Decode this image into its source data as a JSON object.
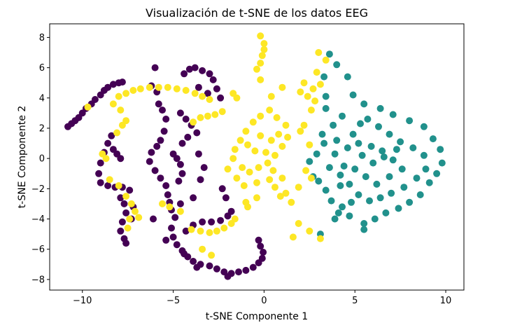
{
  "chart_data": {
    "type": "scatter",
    "title": "Visualización de t-SNE de los datos EEG",
    "xlabel": "t-SNE Componente 1",
    "ylabel": "t-SNE Componente 2",
    "xlim": [
      -11.8,
      11.0
    ],
    "ylim": [
      -8.7,
      8.9
    ],
    "xticks": [
      -10,
      -5,
      0,
      5,
      10
    ],
    "yticks": [
      -8,
      -6,
      -4,
      -2,
      0,
      2,
      4,
      6,
      8
    ],
    "xtick_labels": [
      "−10",
      "−5",
      "0",
      "5",
      "10"
    ],
    "ytick_labels": [
      "−8",
      "−6",
      "−4",
      "−2",
      "0",
      "2",
      "4",
      "6",
      "8"
    ],
    "grid": false,
    "legend": "none",
    "series": [
      {
        "color": "#440154",
        "points": [
          [
            -10.8,
            2.1
          ],
          [
            -10.6,
            2.3
          ],
          [
            -10.4,
            2.5
          ],
          [
            -10.2,
            2.7
          ],
          [
            -10.0,
            3.0
          ],
          [
            -9.8,
            3.3
          ],
          [
            -9.5,
            3.6
          ],
          [
            -9.3,
            3.9
          ],
          [
            -9.0,
            4.2
          ],
          [
            -8.8,
            4.5
          ],
          [
            -8.6,
            4.7
          ],
          [
            -8.3,
            4.9
          ],
          [
            -8.0,
            5.0
          ],
          [
            -7.8,
            5.05
          ],
          [
            -8.4,
            1.5
          ],
          [
            -8.6,
            1.0
          ],
          [
            -8.8,
            0.4
          ],
          [
            -9.0,
            -0.3
          ],
          [
            -9.1,
            -1.0
          ],
          [
            -9.0,
            -1.6
          ],
          [
            -8.6,
            -1.8
          ],
          [
            -8.2,
            -1.9
          ],
          [
            -7.8,
            -1.9
          ],
          [
            -7.4,
            -2.1
          ],
          [
            -8.3,
            0.6
          ],
          [
            -8.1,
            0.3
          ],
          [
            -7.9,
            0.0
          ],
          [
            -7.9,
            -2.6
          ],
          [
            -7.7,
            -3.0
          ],
          [
            -7.6,
            -3.6
          ],
          [
            -7.8,
            -4.2
          ],
          [
            -7.9,
            -4.8
          ],
          [
            -7.7,
            -5.3
          ],
          [
            -7.6,
            -5.6
          ],
          [
            -7.2,
            -3.2
          ],
          [
            -7.3,
            -4.0
          ],
          [
            -6.2,
            4.8
          ],
          [
            -5.9,
            4.4
          ],
          [
            -5.8,
            3.6
          ],
          [
            -5.6,
            3.2
          ],
          [
            -5.4,
            2.6
          ],
          [
            -5.5,
            1.8
          ],
          [
            -5.7,
            1.2
          ],
          [
            -5.9,
            0.8
          ],
          [
            -6.2,
            0.4
          ],
          [
            -6.3,
            -0.2
          ],
          [
            -6.0,
            -0.8
          ],
          [
            -5.7,
            -1.3
          ],
          [
            -5.4,
            -1.8
          ],
          [
            -5.3,
            -2.4
          ],
          [
            -5.2,
            -2.9
          ],
          [
            -5.1,
            -3.4
          ],
          [
            -5.0,
            0.3
          ],
          [
            -4.8,
            0.0
          ],
          [
            -4.6,
            -0.4
          ],
          [
            -4.5,
            -1.0
          ],
          [
            -4.7,
            -1.5
          ],
          [
            -4.6,
            -3.0
          ],
          [
            -4.9,
            -3.9
          ],
          [
            -5.1,
            -4.6
          ],
          [
            -5.0,
            -5.2
          ],
          [
            -4.8,
            -5.7
          ],
          [
            -4.5,
            -6.1
          ],
          [
            -4.2,
            -6.5
          ],
          [
            -3.9,
            -6.8
          ],
          [
            -3.5,
            -7.0
          ],
          [
            -3.0,
            -7.1
          ],
          [
            -2.6,
            -7.3
          ],
          [
            -2.2,
            -7.5
          ],
          [
            -1.8,
            -7.6
          ],
          [
            -1.4,
            -7.5
          ],
          [
            -1.0,
            -7.4
          ],
          [
            -0.6,
            -7.2
          ],
          [
            -0.3,
            -6.9
          ],
          [
            -0.1,
            -6.6
          ],
          [
            -0.05,
            -6.2
          ],
          [
            -0.2,
            -5.8
          ],
          [
            -0.3,
            -5.4
          ],
          [
            -4.4,
            -6.3
          ],
          [
            -3.7,
            -7.2
          ],
          [
            -2.0,
            -7.8
          ],
          [
            -4.3,
            -4.8
          ],
          [
            -3.9,
            -4.4
          ],
          [
            -3.4,
            -4.2
          ],
          [
            -2.9,
            -4.2
          ],
          [
            -2.4,
            -4.1
          ],
          [
            -2.0,
            -3.8
          ],
          [
            -1.8,
            -3.5
          ],
          [
            -2.1,
            -2.6
          ],
          [
            -2.3,
            -2.0
          ],
          [
            -4.6,
            3.0
          ],
          [
            -4.3,
            2.6
          ],
          [
            -4.0,
            2.2
          ],
          [
            -4.2,
            1.4
          ],
          [
            -4.5,
            1.0
          ],
          [
            -3.7,
            1.7
          ],
          [
            -4.4,
            5.6
          ],
          [
            -4.1,
            5.9
          ],
          [
            -3.8,
            6.0
          ],
          [
            -3.4,
            5.8
          ],
          [
            -3.0,
            5.6
          ],
          [
            -2.8,
            5.2
          ],
          [
            -2.6,
            4.6
          ],
          [
            -2.4,
            4.0
          ],
          [
            -3.1,
            4.3
          ],
          [
            -3.6,
            4.7
          ],
          [
            -6.0,
            6.0
          ],
          [
            -3.6,
            0.3
          ],
          [
            -3.3,
            -0.6
          ],
          [
            -3.5,
            -1.4
          ],
          [
            -3.9,
            -2.6
          ],
          [
            -5.4,
            -5.4
          ],
          [
            -6.1,
            -4.0
          ]
        ]
      },
      {
        "color": "#21918c",
        "points": [
          [
            2.5,
            -0.2
          ],
          [
            2.9,
            0.3
          ],
          [
            3.2,
            1.6
          ],
          [
            3.4,
            3.3
          ],
          [
            3.4,
            4.1
          ],
          [
            3.3,
            5.4
          ],
          [
            3.6,
            6.9
          ],
          [
            4.0,
            6.2
          ],
          [
            4.6,
            5.4
          ],
          [
            4.9,
            4.2
          ],
          [
            5.5,
            3.6
          ],
          [
            6.4,
            3.3
          ],
          [
            7.1,
            2.9
          ],
          [
            8.0,
            2.5
          ],
          [
            8.8,
            2.1
          ],
          [
            9.3,
            1.3
          ],
          [
            9.7,
            0.6
          ],
          [
            9.8,
            -0.3
          ],
          [
            9.5,
            -1.0
          ],
          [
            9.1,
            -1.6
          ],
          [
            8.6,
            -2.4
          ],
          [
            8.0,
            -2.9
          ],
          [
            7.4,
            -3.3
          ],
          [
            6.7,
            -3.6
          ],
          [
            6.1,
            -4.0
          ],
          [
            5.5,
            -4.3
          ],
          [
            5.5,
            -4.7
          ],
          [
            4.7,
            -3.8
          ],
          [
            4.1,
            -3.6
          ],
          [
            3.7,
            -2.8
          ],
          [
            3.4,
            -2.1
          ],
          [
            3.0,
            -1.5
          ],
          [
            2.7,
            -1.2
          ],
          [
            3.1,
            -5.0
          ],
          [
            3.9,
            -4.0
          ],
          [
            4.3,
            -3.2
          ],
          [
            4.2,
            -1.8
          ],
          [
            4.4,
            -0.5
          ],
          [
            4.6,
            0.7
          ],
          [
            4.9,
            1.6
          ],
          [
            5.3,
            2.3
          ],
          [
            5.7,
            2.6
          ],
          [
            6.3,
            2.1
          ],
          [
            6.9,
            1.6
          ],
          [
            7.5,
            1.1
          ],
          [
            8.2,
            0.7
          ],
          [
            8.8,
            0.2
          ],
          [
            8.9,
            -0.7
          ],
          [
            8.4,
            -1.3
          ],
          [
            7.7,
            -1.9
          ],
          [
            7.0,
            -2.3
          ],
          [
            6.4,
            -2.6
          ],
          [
            5.8,
            -2.8
          ],
          [
            5.2,
            -2.4
          ],
          [
            4.7,
            -1.7
          ],
          [
            5.0,
            -0.7
          ],
          [
            5.4,
            0.2
          ],
          [
            5.9,
            0.8
          ],
          [
            6.5,
            0.5
          ],
          [
            7.1,
            -0.1
          ],
          [
            7.6,
            -0.7
          ],
          [
            6.9,
            -1.2
          ],
          [
            6.2,
            -1.7
          ],
          [
            5.6,
            -1.2
          ],
          [
            6.0,
            -0.3
          ],
          [
            6.6,
            0.1
          ],
          [
            5.2,
            1.0
          ],
          [
            7.3,
            0.6
          ],
          [
            4.8,
            -2.9
          ],
          [
            3.6,
            -0.6
          ],
          [
            3.3,
            1.0
          ],
          [
            3.8,
            2.2
          ],
          [
            4.3,
            2.8
          ],
          [
            4.0,
            1.2
          ],
          [
            4.2,
            -1.1
          ],
          [
            3.9,
            0.3
          ]
        ]
      },
      {
        "color": "#fde725",
        "points": [
          [
            -0.2,
            8.1
          ],
          [
            0.0,
            7.6
          ],
          [
            0.0,
            7.2
          ],
          [
            -0.1,
            6.8
          ],
          [
            -0.2,
            6.3
          ],
          [
            -0.4,
            5.9
          ],
          [
            -0.2,
            5.2
          ],
          [
            -8.0,
            4.1
          ],
          [
            -7.6,
            4.3
          ],
          [
            -7.2,
            4.5
          ],
          [
            -6.8,
            4.6
          ],
          [
            -6.3,
            4.7
          ],
          [
            -5.8,
            4.7
          ],
          [
            -5.3,
            4.7
          ],
          [
            -4.8,
            4.6
          ],
          [
            -4.3,
            4.5
          ],
          [
            -3.8,
            4.3
          ],
          [
            -3.4,
            4.1
          ],
          [
            -3.0,
            3.9
          ],
          [
            -9.7,
            3.4
          ],
          [
            -8.3,
            3.6
          ],
          [
            -7.9,
            3.2
          ],
          [
            -8.1,
            1.7
          ],
          [
            -7.8,
            2.2
          ],
          [
            -7.6,
            2.5
          ],
          [
            -3.9,
            2.4
          ],
          [
            -3.5,
            2.7
          ],
          [
            -3.1,
            2.8
          ],
          [
            -2.7,
            2.9
          ],
          [
            -2.3,
            3.1
          ],
          [
            -8.9,
            0.3
          ],
          [
            -8.7,
            0.0
          ],
          [
            -8.5,
            -1.4
          ],
          [
            -8.0,
            -1.8
          ],
          [
            -7.6,
            -2.5
          ],
          [
            -7.3,
            -3.0
          ],
          [
            -7.1,
            -3.5
          ],
          [
            -7.4,
            -4.0
          ],
          [
            -7.5,
            -4.6
          ],
          [
            -6.9,
            -3.9
          ],
          [
            -5.6,
            -3.0
          ],
          [
            -5.2,
            -3.2
          ],
          [
            -4.6,
            -3.5
          ],
          [
            -4.0,
            -4.7
          ],
          [
            -3.5,
            -4.8
          ],
          [
            -3.0,
            -4.9
          ],
          [
            -2.6,
            -4.8
          ],
          [
            -2.2,
            -4.6
          ],
          [
            -1.8,
            -4.3
          ],
          [
            -1.6,
            -4.0
          ],
          [
            -2.0,
            -0.7
          ],
          [
            -1.7,
            0.0
          ],
          [
            -1.6,
            0.6
          ],
          [
            -1.3,
            1.2
          ],
          [
            -1.0,
            1.8
          ],
          [
            -0.6,
            2.4
          ],
          [
            -0.2,
            2.8
          ],
          [
            0.3,
            3.2
          ],
          [
            0.7,
            2.7
          ],
          [
            1.2,
            2.2
          ],
          [
            1.3,
            1.4
          ],
          [
            1.0,
            0.8
          ],
          [
            0.6,
            0.2
          ],
          [
            0.2,
            -0.3
          ],
          [
            -0.3,
            -0.6
          ],
          [
            -0.8,
            -0.9
          ],
          [
            -1.2,
            -0.6
          ],
          [
            -0.5,
            0.5
          ],
          [
            -0.9,
            0.9
          ],
          [
            0.4,
            1.2
          ],
          [
            0.8,
            1.6
          ],
          [
            -0.2,
            1.5
          ],
          [
            0.1,
            0.4
          ],
          [
            0.5,
            -0.8
          ],
          [
            1.0,
            -1.3
          ],
          [
            0.6,
            -1.9
          ],
          [
            1.2,
            -2.3
          ],
          [
            1.5,
            -2.9
          ],
          [
            0.9,
            -2.5
          ],
          [
            0.3,
            -1.4
          ],
          [
            -0.4,
            -1.6
          ],
          [
            -1.1,
            -1.8
          ],
          [
            -1.5,
            -1.3
          ],
          [
            -1.0,
            -2.9
          ],
          [
            -0.4,
            -2.6
          ],
          [
            -0.9,
            -3.2
          ],
          [
            2.0,
            1.8
          ],
          [
            2.5,
            0.9
          ],
          [
            2.2,
            2.2
          ],
          [
            2.6,
            -1.3
          ],
          [
            2.3,
            -0.8
          ],
          [
            1.9,
            -1.9
          ],
          [
            2.6,
            3.2
          ],
          [
            2.4,
            4.1
          ],
          [
            2.7,
            4.6
          ],
          [
            2.2,
            5.0
          ],
          [
            2.0,
            4.4
          ],
          [
            3.0,
            7.0
          ],
          [
            3.4,
            6.5
          ],
          [
            2.9,
            5.7
          ],
          [
            3.1,
            4.9
          ],
          [
            2.8,
            3.8
          ],
          [
            1.9,
            -4.3
          ],
          [
            2.5,
            -4.8
          ],
          [
            3.1,
            -5.3
          ],
          [
            1.6,
            -5.2
          ],
          [
            -1.7,
            4.3
          ],
          [
            -1.5,
            4.0
          ],
          [
            0.4,
            4.1
          ],
          [
            1.0,
            4.7
          ],
          [
            -2.9,
            -6.4
          ],
          [
            -3.4,
            -6.0
          ]
        ]
      }
    ]
  }
}
